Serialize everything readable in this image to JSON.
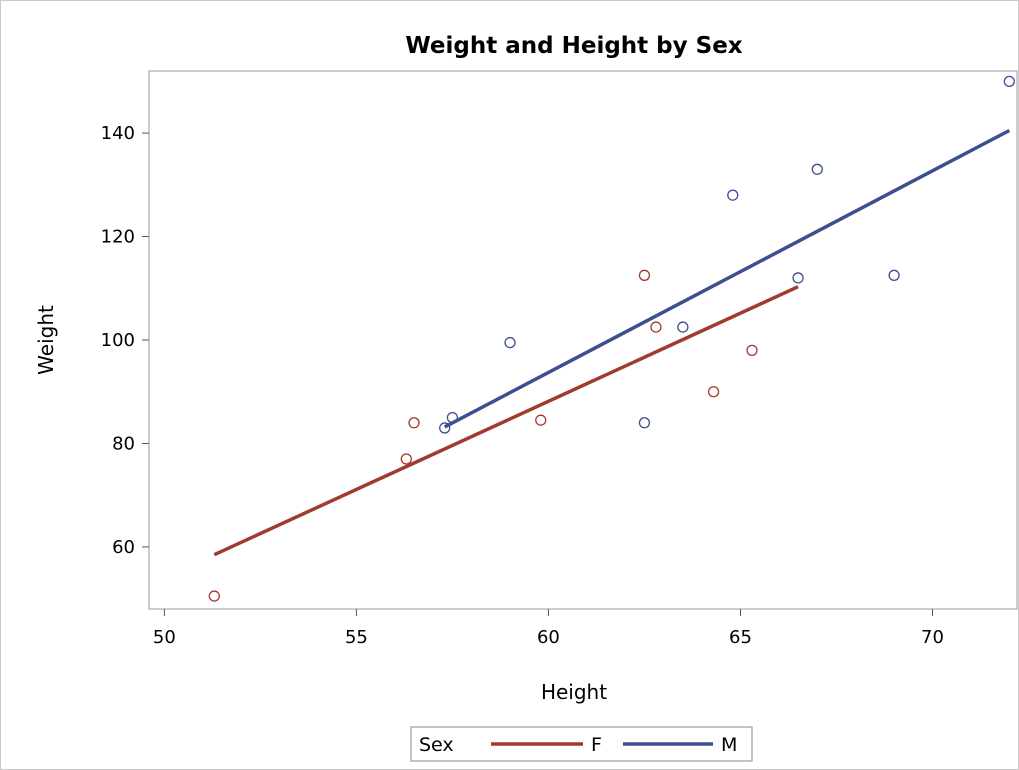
{
  "chart_data": {
    "type": "scatter",
    "title": "Weight and Height by Sex",
    "xlabel": "Height",
    "ylabel": "Weight",
    "xlim": [
      49.6,
      72.2
    ],
    "ylim": [
      48,
      152
    ],
    "xticks": [
      50,
      55,
      60,
      65,
      70
    ],
    "yticks": [
      60,
      80,
      100,
      120,
      140
    ],
    "grid": false,
    "legend": {
      "title": "Sex",
      "placement": "bottom-center"
    },
    "series": [
      {
        "name": "F",
        "color": "#A23A2E",
        "points": [
          [
            51.3,
            50.5
          ],
          [
            56.3,
            77.0
          ],
          [
            56.5,
            84.0
          ],
          [
            59.8,
            84.5
          ],
          [
            62.5,
            112.5
          ],
          [
            62.8,
            102.5
          ],
          [
            64.3,
            90.0
          ],
          [
            65.3,
            98.0
          ]
        ],
        "fit_line": [
          [
            51.3,
            58.5
          ],
          [
            66.5,
            110.3
          ]
        ]
      },
      {
        "name": "M",
        "color": "#3D4F8F",
        "points": [
          [
            57.3,
            83.0
          ],
          [
            57.5,
            85.0
          ],
          [
            59.0,
            99.5
          ],
          [
            62.5,
            84.0
          ],
          [
            63.5,
            102.5
          ],
          [
            64.8,
            128.0
          ],
          [
            66.5,
            112.0
          ],
          [
            67.0,
            133.0
          ],
          [
            69.0,
            112.5
          ],
          [
            72.0,
            150.0
          ]
        ],
        "fit_line": [
          [
            57.3,
            83.2
          ],
          [
            72.0,
            140.5
          ]
        ]
      }
    ]
  }
}
